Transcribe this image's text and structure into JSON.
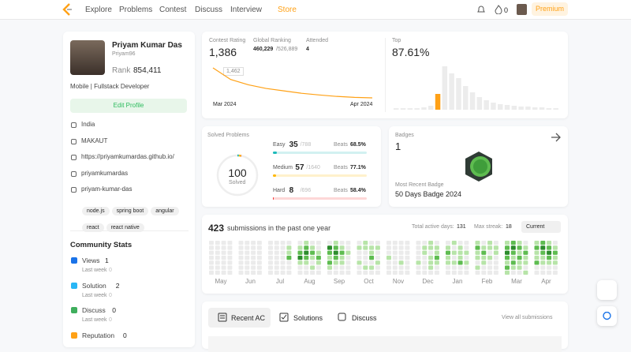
{
  "nav": {
    "items": [
      "Explore",
      "Problems",
      "Contest",
      "Discuss",
      "Interview",
      "Store"
    ],
    "streak": "0",
    "premium": "Premium"
  },
  "profile": {
    "name": "Priyam Kumar Das",
    "username": "Priyam96",
    "rank_label": "Rank",
    "rank": "854,411",
    "bio": "Mobile | Fullstack Developer",
    "edit": "Edit Profile",
    "info": [
      "India",
      "MAKAUT",
      "https://priyamkumardas.github.io/",
      "priyamkumardas",
      "priyam-kumar-das"
    ],
    "skills": [
      "node.js",
      "spring boot",
      "angular",
      "react",
      "react native"
    ]
  },
  "community": {
    "title": "Community Stats",
    "items": [
      {
        "label": "Views",
        "value": "1",
        "sub": "Last week",
        "delta": "0"
      },
      {
        "label": "Solution",
        "value": "2",
        "sub": "Last week",
        "delta": "0"
      },
      {
        "label": "Discuss",
        "value": "0",
        "sub": "Last week",
        "delta": "0"
      },
      {
        "label": "Reputation",
        "value": "0"
      }
    ]
  },
  "contest": {
    "rating_label": "Contest Rating",
    "rating": "1,386",
    "ranking_label": "Global Ranking",
    "ranking": "460,229",
    "ranking_total": "/526,889",
    "attended_label": "Attended",
    "attended": "4",
    "tooltip": "1,462",
    "x_start": "Mar 2024",
    "x_end": "Apr 2024",
    "line": [
      1510,
      1462,
      1440,
      1425,
      1415,
      1405,
      1398,
      1392,
      1388,
      1386
    ],
    "top_label": "Top",
    "top": "87.61%",
    "histogram": [
      2,
      2,
      2,
      2,
      3,
      5,
      20,
      55,
      46,
      40,
      30,
      22,
      16,
      12,
      9,
      7,
      6,
      5,
      4,
      4,
      3,
      3,
      2,
      2
    ],
    "highlight": 6
  },
  "solved": {
    "label": "Solved Problems",
    "total": "100",
    "total_label": "Solved",
    "rows": [
      {
        "name": "Easy",
        "solved": 35,
        "total": "/788",
        "beats_label": "Beats",
        "beats": "68.5%",
        "color": "#1cbaba"
      },
      {
        "name": "Medium",
        "solved": 57,
        "total": "/1640",
        "beats_label": "Beats",
        "beats": "77.1%",
        "color": "#ffb700"
      },
      {
        "name": "Hard",
        "solved": 8,
        "total": "/696",
        "beats_label": "Beats",
        "beats": "58.4%",
        "color": "#f63737"
      }
    ]
  },
  "badges": {
    "label": "Badges",
    "count": "1",
    "recent_label": "Most Recent Badge",
    "recent": "50 Days Badge 2024"
  },
  "submissions": {
    "count": "423",
    "text": "submissions in the past one year",
    "active_label": "Total active days:",
    "active": "131",
    "streak_label": "Max streak:",
    "streak": "18",
    "select": "Current",
    "months": [
      "May",
      "Jun",
      "Jul",
      "Aug",
      "Sep",
      "Oct",
      "Nov",
      "Dec",
      "Jan",
      "Feb",
      "Mar",
      "Apr"
    ],
    "colors": [
      "#ebebeb",
      "#b7e4a8",
      "#5ebc50",
      "#2c8c2c"
    ],
    "weeks": [
      [
        0,
        0,
        0,
        0,
        0,
        0,
        0
      ],
      [
        0,
        0,
        0,
        0,
        0,
        0,
        0
      ],
      [
        0,
        0,
        0,
        0,
        0,
        0,
        0
      ],
      [
        0,
        0,
        0,
        0,
        0,
        0,
        0
      ],
      [
        0,
        0,
        0,
        0,
        0,
        0,
        0
      ],
      [
        0,
        0,
        0,
        0,
        0,
        0,
        0
      ],
      [
        0,
        0,
        0,
        0,
        0,
        0,
        0
      ],
      [
        0,
        0,
        0,
        0,
        0,
        0,
        0
      ],
      [
        0,
        0,
        0,
        0,
        0,
        0,
        0
      ],
      [
        0,
        0,
        0,
        0,
        0,
        0,
        0
      ],
      [
        0,
        0,
        0,
        0,
        0,
        0,
        0
      ],
      [
        0,
        1,
        1,
        2,
        0,
        0,
        0
      ],
      [
        0,
        1,
        2,
        3,
        1,
        0,
        0
      ],
      [
        1,
        2,
        3,
        2,
        1,
        0,
        0
      ],
      [
        0,
        1,
        2,
        1,
        0,
        1,
        0
      ],
      [
        0,
        0,
        1,
        2,
        1,
        0,
        0
      ],
      [
        0,
        3,
        2,
        1,
        2,
        1,
        0
      ],
      [
        1,
        2,
        3,
        2,
        1,
        0,
        0
      ],
      [
        0,
        1,
        2,
        1,
        1,
        0,
        0
      ],
      [
        0,
        0,
        1,
        0,
        0,
        0,
        0
      ],
      [
        0,
        1,
        0,
        0,
        1,
        0,
        0
      ],
      [
        1,
        1,
        0,
        0,
        0,
        1,
        0
      ],
      [
        0,
        1,
        1,
        2,
        0,
        1,
        0
      ],
      [
        0,
        1,
        0,
        0,
        1,
        0,
        0
      ],
      [
        0,
        0,
        0,
        1,
        0,
        0,
        0
      ],
      [
        0,
        0,
        0,
        0,
        0,
        0,
        0
      ],
      [
        0,
        0,
        0,
        0,
        1,
        0,
        0
      ],
      [
        0,
        0,
        0,
        0,
        0,
        0,
        0
      ],
      [
        0,
        0,
        0,
        0,
        1,
        0,
        0
      ],
      [
        0,
        1,
        1,
        0,
        0,
        0,
        0
      ],
      [
        1,
        1,
        0,
        1,
        1,
        1,
        0
      ],
      [
        0,
        1,
        1,
        2,
        1,
        0,
        0
      ],
      [
        0,
        1,
        2,
        1,
        1,
        0,
        0
      ],
      [
        1,
        0,
        1,
        0,
        1,
        0,
        0
      ],
      [
        0,
        1,
        1,
        1,
        2,
        0,
        0
      ],
      [
        0,
        0,
        1,
        0,
        1,
        0,
        0
      ],
      [
        1,
        2,
        1,
        1,
        0,
        1,
        0
      ],
      [
        0,
        1,
        2,
        1,
        1,
        0,
        0
      ],
      [
        1,
        1,
        0,
        1,
        0,
        0,
        0
      ],
      [
        0,
        1,
        1,
        0,
        0,
        0,
        0
      ],
      [
        1,
        2,
        3,
        2,
        1,
        2,
        1
      ],
      [
        2,
        3,
        2,
        1,
        2,
        1,
        0
      ],
      [
        1,
        2,
        1,
        2,
        1,
        1,
        0
      ],
      [
        0,
        1,
        2,
        1,
        1,
        0,
        1
      ],
      [
        1,
        2,
        1,
        1,
        2,
        0,
        0
      ],
      [
        2,
        3,
        2,
        1,
        1,
        0,
        0
      ],
      [
        1,
        2,
        3,
        2,
        1,
        0,
        0
      ],
      [
        0,
        1,
        2,
        1,
        1,
        0,
        0
      ]
    ]
  },
  "tabs": {
    "items": [
      "Recent AC",
      "Solutions",
      "Discuss"
    ],
    "view_all": "View all submissions"
  }
}
